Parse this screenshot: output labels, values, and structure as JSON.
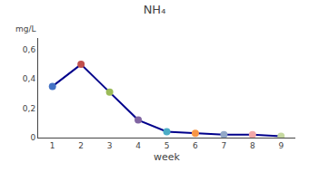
{
  "chart_data": {
    "type": "line",
    "title": "NH₄",
    "xlabel": "week",
    "ylabel": "mg/L",
    "x": [
      1,
      2,
      3,
      4,
      5,
      6,
      7,
      8,
      9
    ],
    "values": [
      0.35,
      0.5,
      0.31,
      0.12,
      0.04,
      0.03,
      0.02,
      0.02,
      0.01
    ],
    "color": "#00008B",
    "colors": [
      "#4472C4",
      "#C0504D",
      "#9BBB59",
      "#8064A2",
      "#4BACC6",
      "#F79646",
      "#93A9C8",
      "#F2A8A8",
      "#C6D9A0"
    ],
    "marker": "circle",
    "xlim": [
      0.5,
      9.5
    ],
    "xticks": [
      1,
      2,
      3,
      4,
      5,
      6,
      7,
      8,
      9
    ],
    "ylim": [
      0,
      0.68
    ],
    "yticks": [
      0,
      {
        "value": 0.2,
        "label": "0,2"
      },
      {
        "value": 0.4,
        "label": "0,4"
      },
      {
        "value": 0.6,
        "label": "0,6"
      }
    ],
    "grid": false
  }
}
